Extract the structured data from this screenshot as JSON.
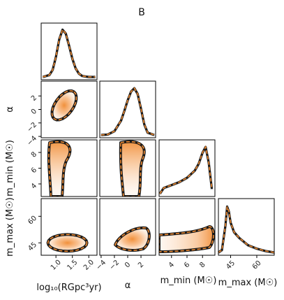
{
  "title": "B",
  "chart_data": {
    "type": "corner",
    "title": "B",
    "parameters": [
      {
        "key": "logR",
        "label": "log₁₀(RGpc³yr)",
        "range": [
          0.55,
          2.25
        ],
        "ticks": [
          1.0,
          1.5,
          2.0
        ],
        "tick_labels": [
          "1.0",
          "1.5",
          "2.0"
        ]
      },
      {
        "key": "alpha",
        "label": "α",
        "range": [
          -4.2,
          4.2
        ],
        "ticks": [
          -4,
          -2,
          0,
          2
        ],
        "tick_labels": [
          "−4",
          "−2",
          "0",
          "2"
        ]
      },
      {
        "key": "mmin",
        "label": "m_min (M☉)",
        "range": [
          2.4,
          9.6
        ],
        "ticks": [
          4,
          6,
          8
        ],
        "tick_labels": [
          "4",
          "6",
          "8"
        ]
      },
      {
        "key": "mmax",
        "label": "m_max (M☉)",
        "range": [
          38,
          70
        ],
        "ticks": [
          45,
          60
        ],
        "tick_labels": [
          "45",
          "60"
        ]
      }
    ],
    "row_labels": [
      {
        "row": 1,
        "text": "α",
        "ticks": [
          -4,
          -2,
          0,
          2
        ],
        "tick_labels": [
          "−4",
          "−2",
          "0",
          "2"
        ]
      },
      {
        "row": 2,
        "text": "m_min (M☉)",
        "ticks": [
          4,
          6,
          8
        ],
        "tick_labels": [
          "4",
          "6",
          "8"
        ]
      },
      {
        "row": 3,
        "text": "m_max (M☉)",
        "ticks": [
          45,
          60
        ],
        "tick_labels": [
          "45",
          "60"
        ]
      }
    ],
    "marginals": [
      {
        "param": "logR",
        "x": [
          0.6,
          0.8,
          0.9,
          1.0,
          1.1,
          1.2,
          1.3,
          1.4,
          1.5,
          1.6,
          1.7,
          1.8,
          1.9,
          2.0,
          2.2
        ],
        "density": [
          0.0,
          0.04,
          0.15,
          0.42,
          0.78,
          0.98,
          0.9,
          0.65,
          0.38,
          0.18,
          0.07,
          0.02,
          0.01,
          0.0,
          0.0
        ]
      },
      {
        "param": "alpha",
        "x": [
          -4,
          -3,
          -2,
          -1,
          -0.5,
          0,
          0.5,
          1,
          1.5,
          2,
          2.5,
          3,
          4
        ],
        "density": [
          0.0,
          0.01,
          0.08,
          0.3,
          0.5,
          0.72,
          0.9,
          0.97,
          0.85,
          0.55,
          0.22,
          0.05,
          0.0
        ]
      },
      {
        "param": "mmin",
        "x": [
          2.5,
          3,
          4,
          5,
          6,
          7,
          7.5,
          8,
          8.4,
          8.8,
          9.2
        ],
        "density": [
          0.0,
          0.12,
          0.18,
          0.24,
          0.33,
          0.48,
          0.62,
          0.85,
          0.97,
          0.65,
          0.1
        ]
      },
      {
        "param": "mmax",
        "x": [
          38,
          40,
          42,
          43,
          44,
          45,
          47,
          50,
          55,
          60,
          65,
          70
        ],
        "density": [
          0.0,
          0.05,
          0.55,
          0.95,
          0.85,
          0.62,
          0.42,
          0.3,
          0.15,
          0.08,
          0.03,
          0.0
        ]
      }
    ],
    "legend": null,
    "colors": {
      "fill": "#f59a45",
      "contour": "#1a1a1a",
      "dash": "#f08a30",
      "grid": false
    }
  }
}
